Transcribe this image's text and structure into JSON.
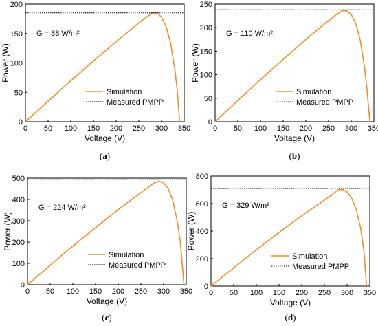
{
  "chart_data": [
    {
      "type": "line",
      "panel_label_open": "(",
      "panel_label_letter": "a",
      "panel_label_close": ")",
      "xlabel": "Voltage (V)",
      "ylabel": "Power (W)",
      "xlim": [
        0,
        350
      ],
      "ylim": [
        0,
        200
      ],
      "xticks": [
        0,
        50,
        100,
        150,
        200,
        250,
        300,
        350
      ],
      "yticks": [
        0,
        50,
        100,
        150,
        200
      ],
      "annotation": "G = 88 W/m²",
      "legend_placement": "lower-center",
      "series": [
        {
          "name": "Simulation",
          "color": "#F28C28",
          "style": "solid",
          "x": [
            0,
            40,
            80,
            120,
            160,
            200,
            240,
            265,
            280,
            290,
            300,
            310,
            320,
            330,
            335,
            340
          ],
          "y": [
            0,
            28,
            56,
            83,
            110,
            136,
            162,
            177,
            185,
            185,
            178,
            162,
            134,
            86,
            50,
            0
          ]
        },
        {
          "name": "Measured PMPP",
          "color": "#000000",
          "style": "dotted",
          "x": [
            0,
            350
          ],
          "y": [
            185,
            185
          ]
        }
      ]
    },
    {
      "type": "line",
      "panel_label_open": "(",
      "panel_label_letter": "b",
      "panel_label_close": ")",
      "xlabel": "Voltage (V)",
      "ylabel": "Power (W)",
      "xlim": [
        0,
        350
      ],
      "ylim": [
        0,
        250
      ],
      "xticks": [
        0,
        50,
        100,
        150,
        200,
        250,
        300,
        350
      ],
      "yticks": [
        0,
        50,
        100,
        150,
        200,
        250
      ],
      "annotation": "G = 110 W/m²",
      "legend_placement": "lower-center",
      "series": [
        {
          "name": "Simulation",
          "color": "#F28C28",
          "style": "solid",
          "x": [
            0,
            40,
            80,
            120,
            160,
            200,
            240,
            265,
            280,
            290,
            300,
            310,
            320,
            330,
            335,
            341
          ],
          "y": [
            0,
            36,
            72,
            107,
            141,
            175,
            207,
            226,
            236,
            236,
            228,
            209,
            173,
            112,
            66,
            0
          ]
        },
        {
          "name": "Measured PMPP",
          "color": "#000000",
          "style": "dotted",
          "x": [
            0,
            350
          ],
          "y": [
            238,
            238
          ]
        }
      ]
    },
    {
      "type": "line",
      "panel_label_open": "(",
      "panel_label_letter": "c",
      "panel_label_close": ")",
      "xlabel": "Voltage (V)",
      "ylabel": "Power (W)",
      "xlim": [
        0,
        350
      ],
      "ylim": [
        0,
        500
      ],
      "xticks": [
        0,
        50,
        100,
        150,
        200,
        250,
        300,
        350
      ],
      "yticks": [
        0,
        100,
        200,
        300,
        400,
        500
      ],
      "annotation": "G = 224 W/m²",
      "legend_placement": "lower-center",
      "series": [
        {
          "name": "Simulation",
          "color": "#F28C28",
          "style": "solid",
          "x": [
            0,
            40,
            80,
            120,
            160,
            200,
            240,
            265,
            280,
            290,
            300,
            310,
            320,
            330,
            337,
            345
          ],
          "y": [
            0,
            73,
            146,
            216,
            285,
            352,
            416,
            455,
            478,
            485,
            478,
            452,
            398,
            300,
            200,
            0
          ]
        },
        {
          "name": "Measured PMPP",
          "color": "#000000",
          "style": "dotted",
          "x": [
            0,
            350
          ],
          "y": [
            493,
            493
          ]
        }
      ]
    },
    {
      "type": "line",
      "panel_label_open": "(",
      "panel_label_letter": "d",
      "panel_label_close": ")",
      "xlabel": "Voltage (V)",
      "ylabel": "Power (W)",
      "xlim": [
        0,
        350
      ],
      "ylim": [
        0,
        800
      ],
      "xticks": [
        0,
        50,
        100,
        150,
        200,
        250,
        300,
        350
      ],
      "yticks": [
        0,
        200,
        400,
        600,
        800
      ],
      "annotation": "G = 329 W/m²",
      "legend_placement": "lower-center",
      "series": [
        {
          "name": "Simulation",
          "color": "#F28C28",
          "style": "solid",
          "x": [
            0,
            40,
            80,
            120,
            160,
            200,
            240,
            265,
            280,
            290,
            300,
            310,
            320,
            330,
            337,
            343
          ],
          "y": [
            0,
            106,
            212,
            315,
            415,
            512,
            602,
            660,
            700,
            702,
            685,
            640,
            560,
            420,
            260,
            0
          ]
        },
        {
          "name": "Measured PMPP",
          "color": "#000000",
          "style": "dotted",
          "x": [
            0,
            350
          ],
          "y": [
            710,
            710
          ]
        }
      ]
    }
  ]
}
